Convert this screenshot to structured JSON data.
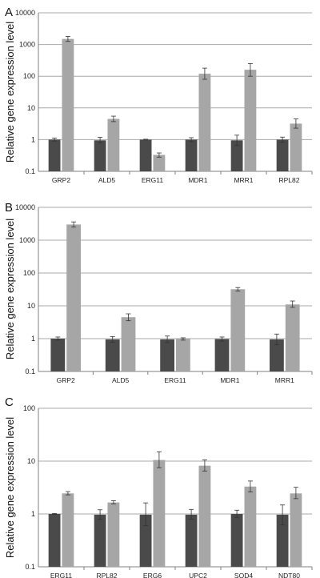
{
  "colors": {
    "dark": "#4a4a4a",
    "light": "#a6a6a6",
    "grid": "#a9a9a9",
    "axis": "#808080"
  },
  "chart_data": [
    {
      "panel_label": "A",
      "type": "bar",
      "yscale": "log",
      "ylim": [
        0.1,
        10000
      ],
      "yticks": [
        "0.1",
        "1",
        "10",
        "100",
        "1000",
        "10000"
      ],
      "ylabel": "Relative gene expression level",
      "categories": [
        "GRP2",
        "ALD5",
        "ERG11",
        "MDR1",
        "MRR1",
        "RPL82"
      ],
      "series": [
        {
          "values": [
            1.0,
            0.95,
            1.0,
            1.0,
            0.95,
            1.0
          ],
          "err_low": [
            0.9,
            0.78,
            0.97,
            0.86,
            0.65,
            0.82
          ],
          "err_high": [
            1.12,
            1.18,
            1.03,
            1.15,
            1.38,
            1.2
          ]
        },
        {
          "values": [
            1500,
            4.5,
            0.33,
            120,
            160,
            3.2
          ],
          "err_low": [
            1250,
            3.7,
            0.28,
            80,
            100,
            2.3
          ],
          "err_high": [
            1800,
            5.5,
            0.38,
            180,
            250,
            4.5
          ]
        }
      ]
    },
    {
      "panel_label": "B",
      "type": "bar",
      "yscale": "log",
      "ylim": [
        0.1,
        10000
      ],
      "yticks": [
        "0.1",
        "1",
        "10",
        "100",
        "1000",
        "10000"
      ],
      "ylabel": "Relative gene expression level",
      "categories": [
        "GRP2",
        "ALD5",
        "ERG11",
        "MDR1",
        "MRR1"
      ],
      "series": [
        {
          "values": [
            1.0,
            0.95,
            0.95,
            0.97,
            0.95
          ],
          "err_low": [
            0.9,
            0.78,
            0.76,
            0.84,
            0.65
          ],
          "err_high": [
            1.12,
            1.16,
            1.2,
            1.12,
            1.38
          ]
        },
        {
          "values": [
            3000,
            4.5,
            0.98,
            32,
            11
          ],
          "err_low": [
            2500,
            3.5,
            0.9,
            28,
            9
          ],
          "err_high": [
            3600,
            5.7,
            1.06,
            36,
            14
          ]
        }
      ]
    },
    {
      "panel_label": "C",
      "type": "bar",
      "yscale": "log",
      "ylim": [
        0.1,
        100
      ],
      "yticks": [
        "0.1",
        "1",
        "10",
        "100"
      ],
      "ylabel": "Relative gene expression level",
      "categories": [
        "ERG11",
        "RPL82",
        "ERG6",
        "UPC2",
        "SOD4",
        "NDT80"
      ],
      "series": [
        {
          "values": [
            1.0,
            0.97,
            0.97,
            0.97,
            1.0,
            0.97
          ],
          "err_low": [
            0.98,
            0.79,
            0.6,
            0.8,
            0.86,
            0.62
          ],
          "err_high": [
            1.02,
            1.2,
            1.62,
            1.22,
            1.18,
            1.48
          ]
        },
        {
          "values": [
            2.45,
            1.65,
            10.5,
            8.2,
            3.3,
            2.45
          ],
          "err_low": [
            2.3,
            1.55,
            7.5,
            6.5,
            2.6,
            1.95
          ],
          "err_high": [
            2.65,
            1.78,
            15.0,
            10.5,
            4.2,
            3.2
          ]
        }
      ]
    }
  ]
}
